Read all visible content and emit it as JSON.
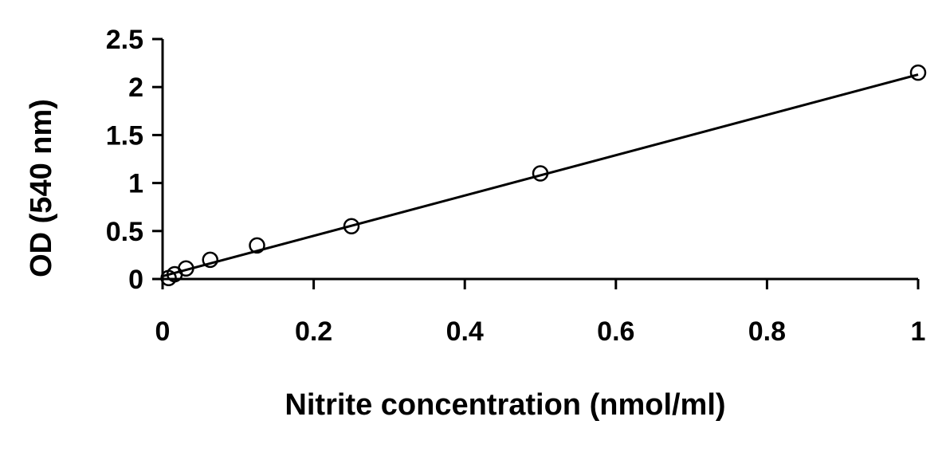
{
  "chart_data": {
    "type": "scatter",
    "title": "",
    "xlabel": "Nitrite concentration (nmol/ml)",
    "ylabel": "OD (540 nm)",
    "xlim": [
      0,
      1
    ],
    "ylim": [
      0,
      2.5
    ],
    "x_ticks": [
      "0",
      "0.2",
      "0.4",
      "0.6",
      "0.8",
      "1"
    ],
    "y_ticks": [
      "0",
      "0.5",
      "1",
      "1.5",
      "2",
      "2.5"
    ],
    "grid": false,
    "legend": "none",
    "series": [
      {
        "marker": "open-circle",
        "x": [
          0.008,
          0.016,
          0.031,
          0.063,
          0.125,
          0.25,
          0.5,
          1.0
        ],
        "y": [
          0.01,
          0.05,
          0.11,
          0.2,
          0.35,
          0.55,
          1.1,
          2.15
        ]
      }
    ],
    "trendline": {
      "type": "linear",
      "x": [
        0,
        1
      ],
      "y": [
        0.03,
        2.13
      ]
    },
    "colors": {
      "axis": "#000000",
      "marker_stroke": "#000000",
      "marker_fill": "#ffffff",
      "line": "#000000"
    }
  }
}
